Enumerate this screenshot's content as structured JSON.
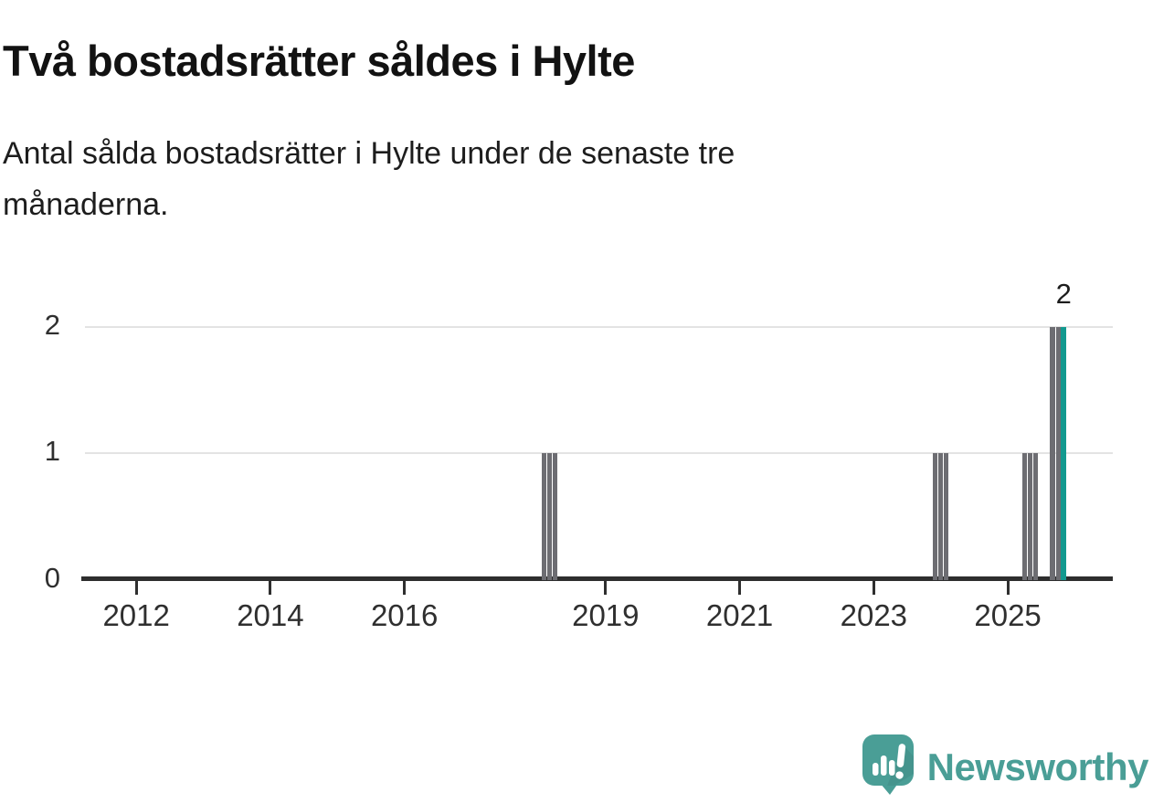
{
  "title": "Två bostadsrätter såldes i Hylte",
  "subtitle": "Antal sålda bostadsrätter i Hylte under de senaste tre månaderna.",
  "subtitle_lines": [
    "Antal sålda bostadsrätter i Hylte under de senaste tre",
    "månaderna."
  ],
  "branding": {
    "logo_text": "Newsworthy",
    "logo_color": "#4a9e96"
  },
  "chart_data": {
    "type": "bar",
    "title": "Två bostadsrätter såldes i Hylte",
    "subtitle": "Antal sålda bostadsrätter i Hylte under de senaste tre månaderna.",
    "xlabel": "",
    "ylabel": "",
    "grid": "horizontal",
    "x_axis": {
      "ticks": [
        2012,
        2014,
        2016,
        2019,
        2021,
        2023,
        2025
      ],
      "range": [
        2011.18,
        2026.57
      ]
    },
    "y_axis": {
      "ticks": [
        0,
        1,
        2
      ],
      "range": [
        0,
        2
      ]
    },
    "bars": [
      {
        "ym": "2018-02",
        "pos": 2018.083,
        "value": 1,
        "highlight": false
      },
      {
        "ym": "2018-03",
        "pos": 2018.167,
        "value": 1,
        "highlight": false
      },
      {
        "ym": "2018-04",
        "pos": 2018.25,
        "value": 1,
        "highlight": false
      },
      {
        "ym": "2023-12",
        "pos": 2023.917,
        "value": 1,
        "highlight": false
      },
      {
        "ym": "2024-01",
        "pos": 2024.0,
        "value": 1,
        "highlight": false
      },
      {
        "ym": "2024-02",
        "pos": 2024.083,
        "value": 1,
        "highlight": false
      },
      {
        "ym": "2025-04",
        "pos": 2025.25,
        "value": 1,
        "highlight": false
      },
      {
        "ym": "2025-05",
        "pos": 2025.333,
        "value": 1,
        "highlight": false
      },
      {
        "ym": "2025-06",
        "pos": 2025.417,
        "value": 1,
        "highlight": false
      },
      {
        "ym": "2025-09",
        "pos": 2025.667,
        "value": 2,
        "highlight": false
      },
      {
        "ym": "2025-10",
        "pos": 2025.75,
        "value": 2,
        "highlight": false
      },
      {
        "ym": "2025-11",
        "pos": 2025.833,
        "value": 2,
        "highlight": true
      }
    ],
    "annotation": {
      "text": "2",
      "pos": 2025.833
    },
    "colors": {
      "bar": "#6d6d72",
      "highlight": "#12998f",
      "grid": "#e3e3e3",
      "axis": "#2e2e2e",
      "text": "#2f2f2f"
    }
  }
}
